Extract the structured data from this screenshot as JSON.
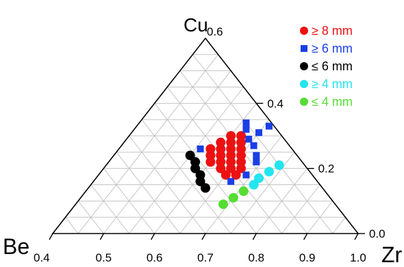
{
  "chart_data": {
    "type": "scatter",
    "subtype": "ternary",
    "vertices": {
      "top": "Cu",
      "left": "Be",
      "right": "Zr"
    },
    "corner_values": {
      "top": "0.6",
      "left": "0.4",
      "right": "1.0"
    },
    "bottom_ticks": [
      "0.4",
      "0.5",
      "0.6",
      "0.7",
      "0.8",
      "0.9",
      "1.0"
    ],
    "right_ticks": [
      "0.0",
      "0.2",
      "0.4"
    ],
    "grid": true,
    "legend_position": "top-right",
    "series": [
      {
        "name": "≥ 8 mm",
        "color": "#ee1111",
        "marker": "circle",
        "points": [
          {
            "zr": 0.6,
            "cu": 0.3
          },
          {
            "zr": 0.62,
            "cu": 0.3
          },
          {
            "zr": 0.59,
            "cu": 0.28
          },
          {
            "zr": 0.61,
            "cu": 0.28
          },
          {
            "zr": 0.63,
            "cu": 0.28
          },
          {
            "zr": 0.58,
            "cu": 0.26
          },
          {
            "zr": 0.6,
            "cu": 0.26
          },
          {
            "zr": 0.62,
            "cu": 0.26
          },
          {
            "zr": 0.64,
            "cu": 0.26
          },
          {
            "zr": 0.59,
            "cu": 0.24
          },
          {
            "zr": 0.61,
            "cu": 0.24
          },
          {
            "zr": 0.63,
            "cu": 0.24
          },
          {
            "zr": 0.65,
            "cu": 0.24
          },
          {
            "zr": 0.6,
            "cu": 0.22
          },
          {
            "zr": 0.62,
            "cu": 0.22
          },
          {
            "zr": 0.64,
            "cu": 0.22
          },
          {
            "zr": 0.66,
            "cu": 0.22
          },
          {
            "zr": 0.63,
            "cu": 0.2
          },
          {
            "zr": 0.65,
            "cu": 0.2
          },
          {
            "zr": 0.67,
            "cu": 0.2
          },
          {
            "zr": 0.65,
            "cu": 0.18
          },
          {
            "zr": 0.67,
            "cu": 0.18
          }
        ]
      },
      {
        "name": "≥ 6 mm",
        "color": "#1a3fe6",
        "marker": "square",
        "points": [
          {
            "zr": 0.61,
            "cu": 0.34
          },
          {
            "zr": 0.66,
            "cu": 0.33
          },
          {
            "zr": 0.62,
            "cu": 0.32
          },
          {
            "zr": 0.65,
            "cu": 0.31
          },
          {
            "zr": 0.64,
            "cu": 0.29
          },
          {
            "zr": 0.66,
            "cu": 0.27
          },
          {
            "zr": 0.56,
            "cu": 0.26
          },
          {
            "zr": 0.68,
            "cu": 0.24
          },
          {
            "zr": 0.69,
            "cu": 0.22
          },
          {
            "zr": 0.69,
            "cu": 0.18
          },
          {
            "zr": 0.67,
            "cu": 0.16
          }
        ]
      },
      {
        "name": "≤ 6 mm",
        "color": "#000000",
        "marker": "circle",
        "points": [
          {
            "zr": 0.55,
            "cu": 0.24
          },
          {
            "zr": 0.57,
            "cu": 0.22
          },
          {
            "zr": 0.58,
            "cu": 0.2
          },
          {
            "zr": 0.6,
            "cu": 0.18
          },
          {
            "zr": 0.61,
            "cu": 0.16
          },
          {
            "zr": 0.63,
            "cu": 0.14
          }
        ]
      },
      {
        "name": "≥ 4 mm",
        "color": "#22e5ee",
        "marker": "circle",
        "points": [
          {
            "zr": 0.74,
            "cu": 0.21
          },
          {
            "zr": 0.73,
            "cu": 0.19
          },
          {
            "zr": 0.72,
            "cu": 0.17
          },
          {
            "zr": 0.72,
            "cu": 0.15
          }
        ]
      },
      {
        "name": "≤ 4 mm",
        "color": "#55dd33",
        "marker": "circle",
        "points": [
          {
            "zr": 0.71,
            "cu": 0.13
          },
          {
            "zr": 0.7,
            "cu": 0.11
          },
          {
            "zr": 0.69,
            "cu": 0.09
          }
        ]
      }
    ]
  }
}
